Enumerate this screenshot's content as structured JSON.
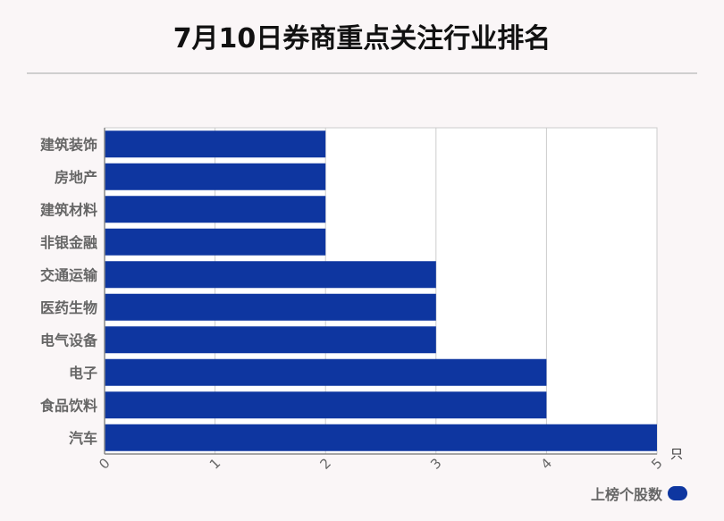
{
  "title": "7月10日券商重点关注行业排名",
  "colors": {
    "bar": "#0e36a0",
    "grid": "#cccccc",
    "axis": "#888888",
    "label": "#666666"
  },
  "chart_data": {
    "type": "bar",
    "orientation": "horizontal",
    "title": "7月10日券商重点关注行业排名",
    "categories": [
      "建筑装饰",
      "房地产",
      "建筑材料",
      "非银金融",
      "交通运输",
      "医药生物",
      "电气设备",
      "电子",
      "食品饮料",
      "汽车"
    ],
    "series": [
      {
        "name": "上榜个股数",
        "values": [
          2,
          2,
          2,
          2,
          3,
          3,
          3,
          4,
          4,
          5
        ]
      }
    ],
    "xlim": [
      0,
      5
    ],
    "xticks": [
      "0",
      "1",
      "2",
      "3",
      "4",
      "5"
    ],
    "xunit": "只",
    "grid": true,
    "legend": "bottom-right"
  }
}
